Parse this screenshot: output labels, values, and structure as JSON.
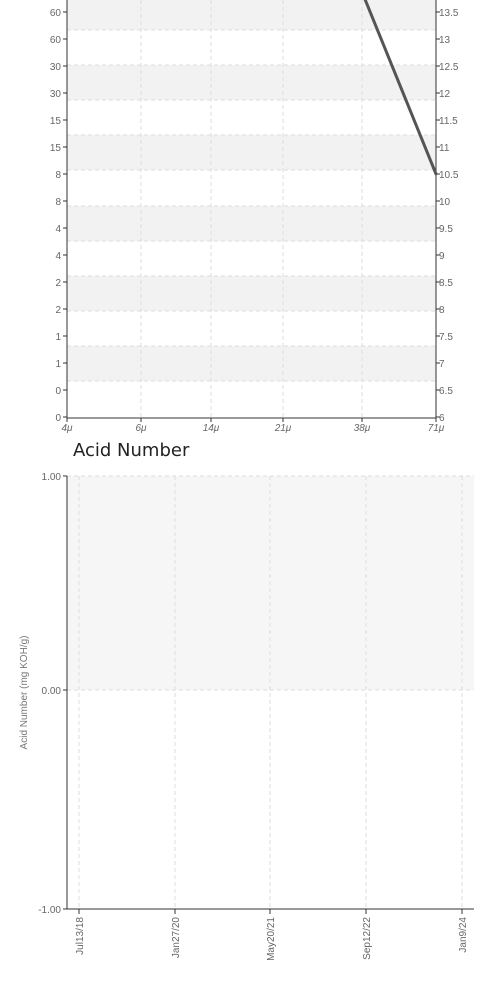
{
  "chart_data": [
    {
      "type": "line",
      "title": "",
      "x_tick_labels": [
        "4μ",
        "6μ",
        "14μ",
        "21μ",
        "38μ",
        "71μ"
      ],
      "y_left_tick_labels": [
        "60",
        "60",
        "30",
        "30",
        "15",
        "15",
        "8",
        "8",
        "4",
        "4",
        "2",
        "2",
        "1",
        "1",
        "0",
        "0"
      ],
      "y_right_tick_labels": [
        "13.5",
        "13",
        "12.5",
        "12",
        "11.5",
        "11",
        "10.5",
        "10",
        "9.5",
        "9",
        "8.5",
        "8",
        "7.5",
        "7",
        "6.5",
        "6"
      ],
      "y_right_range": [
        6,
        13.5
      ],
      "series": [
        {
          "x": [
            "36μ",
            "71μ"
          ],
          "y_right": [
            14.1,
            10.5
          ],
          "color": "#555555"
        }
      ],
      "grid": true,
      "band_color": "#f2f2f2"
    },
    {
      "type": "line",
      "title": "Acid Number",
      "ylabel": "Acid Number (mg KOH/g)",
      "y_tick_labels": [
        "1.00",
        "0.00",
        "-1.00"
      ],
      "ylim": [
        -1,
        1
      ],
      "x_tick_labels": [
        "Jul13/18",
        "Jan27/20",
        "May20/21",
        "Sep12/22",
        "Jan9/24"
      ],
      "series": [],
      "grid": true,
      "band_color": "#f6f6f6"
    }
  ]
}
